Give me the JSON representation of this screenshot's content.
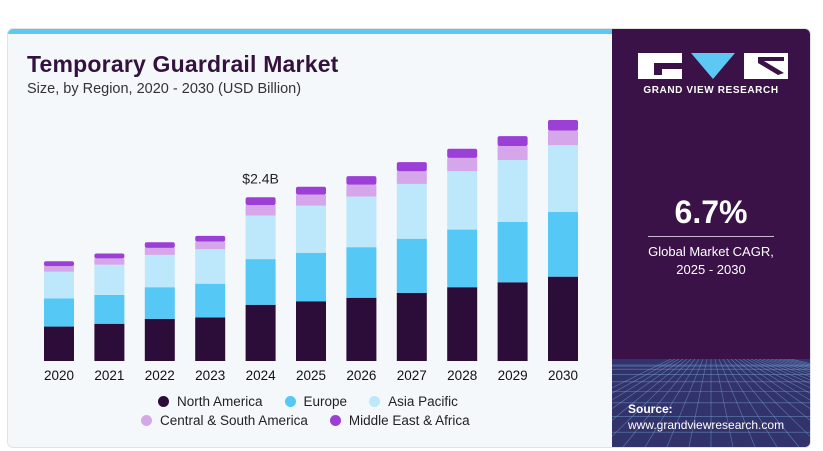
{
  "header": {
    "title": "Temporary Guardrail Market",
    "subtitle": "Size, by Region, 2020 - 2030 (USD Billion)"
  },
  "brand": {
    "name": "GRAND VIEW RESEARCH",
    "colors": {
      "panel": "#3a1248",
      "accent": "#5dc8f3",
      "title": "#34123f"
    }
  },
  "stats": {
    "cagr_value": "6.7%",
    "cagr_label_line1": "Global Market CAGR,",
    "cagr_label_line2": "2025 - 2030"
  },
  "source": {
    "label": "Source:",
    "url": "www.grandviewresearch.com"
  },
  "chart_data": {
    "type": "bar",
    "stacked": true,
    "title": "Temporary Guardrail Market",
    "subtitle": "Size, by Region, 2020 - 2030 (USD Billion)",
    "categories": [
      "2020",
      "2021",
      "2022",
      "2023",
      "2024",
      "2025",
      "2026",
      "2027",
      "2028",
      "2029",
      "2030"
    ],
    "series": [
      {
        "name": "North America",
        "color": "#2c0d3a",
        "values": [
          0.49,
          0.53,
          0.6,
          0.62,
          0.8,
          0.85,
          0.9,
          0.97,
          1.05,
          1.12,
          1.2
        ]
      },
      {
        "name": "Europe",
        "color": "#56c8f5",
        "values": [
          0.4,
          0.41,
          0.45,
          0.48,
          0.65,
          0.69,
          0.72,
          0.77,
          0.82,
          0.86,
          0.92
        ]
      },
      {
        "name": "Asia Pacific",
        "color": "#bde7fa",
        "values": [
          0.38,
          0.43,
          0.46,
          0.49,
          0.62,
          0.67,
          0.72,
          0.78,
          0.83,
          0.88,
          0.95
        ]
      },
      {
        "name": "Central & South America",
        "color": "#d5a6ea",
        "values": [
          0.08,
          0.09,
          0.1,
          0.11,
          0.15,
          0.16,
          0.17,
          0.18,
          0.19,
          0.2,
          0.21
        ]
      },
      {
        "name": "Middle East & Africa",
        "color": "#9b3fd6",
        "values": [
          0.07,
          0.07,
          0.08,
          0.08,
          0.11,
          0.11,
          0.12,
          0.13,
          0.13,
          0.14,
          0.15
        ]
      }
    ],
    "annotations": [
      {
        "category": "2024",
        "text": "$2.4B"
      }
    ],
    "ylim": [
      0,
      3.6
    ],
    "grid": false,
    "legend_position": "bottom"
  }
}
